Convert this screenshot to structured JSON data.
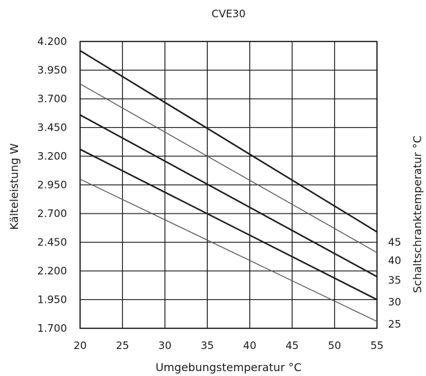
{
  "chart_data": {
    "type": "line",
    "title": "CVE30",
    "xlabel": "Umgebungstemperatur °C",
    "ylabel": "Kälteleistung W",
    "right_label": "Schaltschranktemperatur °C",
    "xlim": [
      20,
      55
    ],
    "ylim": [
      1700,
      4200
    ],
    "x_ticks": [
      20,
      25,
      30,
      35,
      40,
      45,
      50,
      55
    ],
    "x_tick_labels": [
      "20",
      "25",
      "30",
      "35",
      "40",
      "45",
      "50",
      "55"
    ],
    "y_ticks": [
      1700,
      1950,
      2200,
      2450,
      2700,
      2950,
      3200,
      3450,
      3700,
      3950,
      4200
    ],
    "y_tick_labels": [
      "1.700",
      "1.950",
      "2.200",
      "2.450",
      "2.700",
      "2.950",
      "3.200",
      "3.450",
      "3.700",
      "3.950",
      "4.200"
    ],
    "grid": true,
    "series": [
      {
        "name": "45",
        "x": [
          20,
          55
        ],
        "y": [
          4120,
          2540
        ],
        "color": "#1a1a1a",
        "width": 2.2
      },
      {
        "name": "40",
        "x": [
          20,
          55
        ],
        "y": [
          3830,
          2360
        ],
        "color": "#555555",
        "width": 1.3
      },
      {
        "name": "35",
        "x": [
          20,
          55
        ],
        "y": [
          3560,
          2150
        ],
        "color": "#1a1a1a",
        "width": 2.2
      },
      {
        "name": "30",
        "x": [
          20,
          55
        ],
        "y": [
          3260,
          1950
        ],
        "color": "#1a1a1a",
        "width": 2.2
      },
      {
        "name": "25",
        "x": [
          20,
          55
        ],
        "y": [
          3000,
          1760
        ],
        "color": "#555555",
        "width": 1.3
      }
    ],
    "series_labels": [
      "45",
      "40",
      "35",
      "30",
      "25"
    ],
    "series_label_values": [
      2450,
      2290,
      2120,
      1930,
      1735
    ]
  }
}
